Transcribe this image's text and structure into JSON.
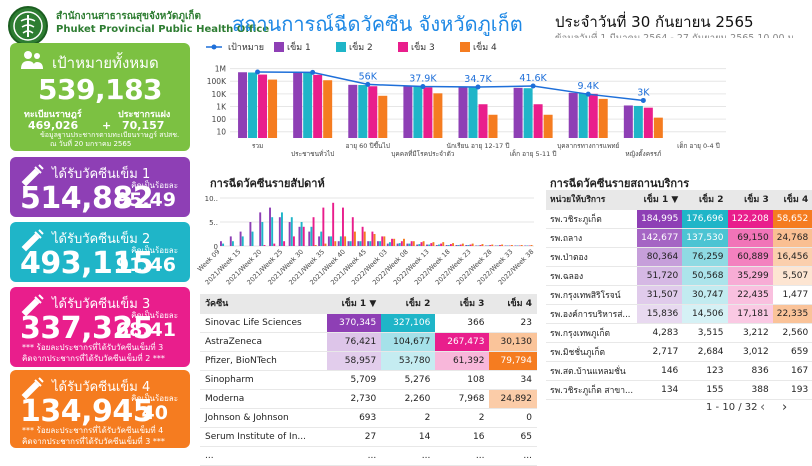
{
  "header": {
    "office_th": "สำนักงานสาธารณสุขจังหวัดภูเก็ต",
    "office_en": "Phuket Provincial Public Health Office",
    "title": "สถานการณ์ฉีดวัคซีน จังหวัดภูเก็ต",
    "date": "ประจำวันที่ 30 กันยายน 2565",
    "date_sub": "ข้อมูลวันที่ 1 มีนาคม 2564 - 27 กันยายน 2565 10.00 น."
  },
  "cards": {
    "target": {
      "title": "เป้าหมายทั้งหมด",
      "total": "539,183",
      "reg_label": "ทะเบียนราษฎร์",
      "social_label": "ประชากรแฝง",
      "plus": "+",
      "reg_value": "469,026",
      "social_value": "70,157",
      "note1": "ข้อมูลฐานประชากรตามทะเบียนราษฎร์ สปสช.",
      "note2": "ณ วันที่ 20 มกราคม 2565"
    },
    "dose1": {
      "title": "ได้รับวัคซีนเข็ม 1",
      "value": "514,882",
      "pct": "95.49",
      "pct_label": "คิดเป็นร้อยละ"
    },
    "dose2": {
      "title": "ได้รับวัคซีนเข็ม 2",
      "value": "493,115",
      "pct": "91.46",
      "pct_label": "คิดเป็นร้อยละ"
    },
    "dose3": {
      "title": "ได้รับวัคซีนเข็ม 3",
      "value": "337,325",
      "pct": "68.41",
      "pct_label": "คิดเป็นร้อยละ",
      "note1": "*** ร้อยละประชากรที่ได้รับวัคซีนเข็มที่ 3",
      "note2": "คิดจากประชากรที่ได้รับวัคซีนเข็มที่ 2 ***"
    },
    "dose4": {
      "title": "ได้รับวัคซีนเข็ม 4",
      "value": "134,945",
      "pct": "40",
      "pct_label": "คิดเป็นร้อยละ",
      "note1": "*** ร้อยละประชากรที่ได้รับวัคซีนเข็มที่ 4",
      "note2": "คิดจากประชากรที่ได้รับวัคซีนเข็มที่ 3 ***"
    }
  },
  "colors": {
    "target_line": "#1e6fd9",
    "dose1": "#8e3fb5",
    "dose2": "#1fb5c8",
    "dose3": "#e91e8c",
    "dose4": "#f57c20"
  },
  "chart_data": [
    {
      "type": "bar",
      "scale": "log",
      "legend_position": "top",
      "categories": [
        "รวม",
        "ประชาชนทั่วไป",
        "อายุ 60 ปีขึ้นไป",
        "บุคคลที่มีโรคประจำตัว",
        "นักเรียน อายุ 12-17 ปี",
        "เด็ก อายุ 5-11 ปี",
        "บุคลากรทางการแพทย์",
        "หญิงตั้งครรภ์",
        "เด็ก อายุ 0-4 ปี"
      ],
      "y_ticks": [
        "1M",
        "100K",
        "10K",
        "1K",
        "100",
        "10"
      ],
      "series": [
        {
          "name": "เป้าหมาย",
          "kind": "line",
          "values": [
            539183,
            500000,
            56000,
            37900,
            34700,
            41600,
            9400,
            3000,
            null
          ],
          "labels": [
            "",
            "",
            "56K",
            "37.9K",
            "34.7K",
            "41.6K",
            "9.4K",
            "3K",
            ""
          ]
        },
        {
          "name": "เข็ม 1",
          "values": [
            514882,
            480000,
            52000,
            40000,
            33000,
            30000,
            12000,
            1200,
            null
          ]
        },
        {
          "name": "เข็ม 2",
          "values": [
            493115,
            460000,
            50000,
            39000,
            32000,
            28000,
            11500,
            1100,
            null
          ]
        },
        {
          "name": "เข็ม 3",
          "values": [
            337325,
            320000,
            40000,
            33000,
            1500,
            1500,
            10000,
            800,
            null
          ]
        },
        {
          "name": "เข็ม 4",
          "values": [
            134945,
            120000,
            7000,
            11000,
            220,
            220,
            4000,
            130,
            null
          ]
        }
      ]
    },
    {
      "type": "bar",
      "title": "การฉีดวัคซีนรายสัปดาห์",
      "y_ticks": [
        "10..",
        "5..",
        "0"
      ],
      "x_ticks": [
        "Week 09",
        "2021/Week 15",
        "2021/Week 20",
        "2021/Week 25",
        "2021/Week 30",
        "2021/Week 35",
        "2021/Week 40",
        "2021/Week 45",
        "2022/Week 03",
        "2022/Week 08",
        "2022/Week 13",
        "2022/Week 18",
        "2022/Week 23",
        "2022/Week 28",
        "2022/Week 33",
        "2022/Week 38"
      ],
      "series": [
        {
          "name": "เข็ม 1",
          "values": [
            1,
            2,
            3,
            5,
            7,
            8,
            6,
            5,
            4,
            3,
            2,
            2,
            1,
            1,
            1,
            1,
            1,
            0.5,
            0.5,
            0.5,
            0.3,
            0.3,
            0.2,
            0.2,
            0.2,
            0.2,
            0.1,
            0.1,
            0.1,
            0.1,
            0.1,
            0.1
          ]
        },
        {
          "name": "เข็ม 2",
          "values": [
            0.5,
            1,
            2,
            3,
            5,
            6,
            7,
            6,
            5,
            4,
            3,
            2,
            2,
            1,
            1,
            1,
            1,
            0.8,
            0.6,
            0.5,
            0.4,
            0.3,
            0.3,
            0.2,
            0.2,
            0.2,
            0.1,
            0.1,
            0.1,
            0.1,
            0.1,
            0.1
          ]
        },
        {
          "name": "เข็ม 3",
          "values": [
            0,
            0,
            0,
            0,
            0.2,
            0.5,
            1,
            2,
            4,
            6,
            8,
            9,
            8,
            6,
            4,
            3,
            2,
            1.5,
            1,
            1,
            0.8,
            0.6,
            0.5,
            0.4,
            0.3,
            0.3,
            0.2,
            0.2,
            0.2,
            0.1,
            0.1,
            0.1
          ]
        },
        {
          "name": "เข็ม 4",
          "values": [
            0,
            0,
            0,
            0,
            0,
            0,
            0,
            0,
            0,
            0.2,
            0.5,
            1,
            2,
            3,
            3,
            2.5,
            2,
            1.5,
            1.5,
            1,
            1,
            0.8,
            0.8,
            0.6,
            0.5,
            0.5,
            0.4,
            0.3,
            0.3,
            0.2,
            0.2,
            0.2
          ]
        }
      ]
    },
    {
      "type": "table",
      "title": "วัคซีน",
      "columns": [
        "วัคซีน",
        "เข็ม 1 ▼",
        "เข็ม 2",
        "เข็ม 3",
        "เข็ม 4"
      ],
      "rows": [
        [
          "Sinovac Life Sciences",
          "370,345",
          "327,106",
          "366",
          "23"
        ],
        [
          "AstraZeneca",
          "76,421",
          "104,677",
          "267,473",
          "30,130"
        ],
        [
          "Pfizer, BioNTech",
          "58,957",
          "53,780",
          "61,392",
          "79,794"
        ],
        [
          "Sinopharm",
          "5,709",
          "5,276",
          "108",
          "34"
        ],
        [
          "Moderna",
          "2,730",
          "2,260",
          "7,968",
          "24,892"
        ],
        [
          "Johnson & Johnson",
          "693",
          "2",
          "2",
          "0"
        ],
        [
          "Serum Institute of In...",
          "27",
          "14",
          "16",
          "65"
        ],
        [
          "...",
          "...",
          "...",
          "...",
          "..."
        ]
      ]
    },
    {
      "type": "table",
      "title": "การฉีดวัคซีนรายสถานบริการ",
      "columns": [
        "หน่วยให้บริการ",
        "เข็ม 1 ▼",
        "เข็ม 2",
        "เข็ม 3",
        "เข็ม 4"
      ],
      "rows": [
        [
          "รพ.วชิระภูเก็ต",
          "184,995",
          "176,696",
          "122,208",
          "58,652"
        ],
        [
          "รพ.ถลาง",
          "142,677",
          "137,530",
          "69,150",
          "24,768"
        ],
        [
          "รพ.ป่าตอง",
          "80,364",
          "76,259",
          "60,889",
          "16,456"
        ],
        [
          "รพ.ฉลอง",
          "51,720",
          "50,568",
          "35,299",
          "5,507"
        ],
        [
          "รพ.กรุงเทพสิริโรจน์",
          "31,507",
          "30,747",
          "22,435",
          "1,477"
        ],
        [
          "รพ.องค์การบริหารส่...",
          "15,836",
          "14,506",
          "17,181",
          "22,335"
        ],
        [
          "รพ.กรุงเทพภูเก็ต",
          "4,283",
          "3,515",
          "3,212",
          "2,560"
        ],
        [
          "รพ.มิชชั่นภูเก็ต",
          "2,717",
          "2,684",
          "3,012",
          "659"
        ],
        [
          "รพ.สต.บ้านแหลมชั่น",
          "146",
          "123",
          "836",
          "167"
        ],
        [
          "รพ.วชิระภูเก็ต สาขา...",
          "134",
          "155",
          "388",
          "193"
        ]
      ],
      "pager": "1 - 10 / 32"
    }
  ]
}
